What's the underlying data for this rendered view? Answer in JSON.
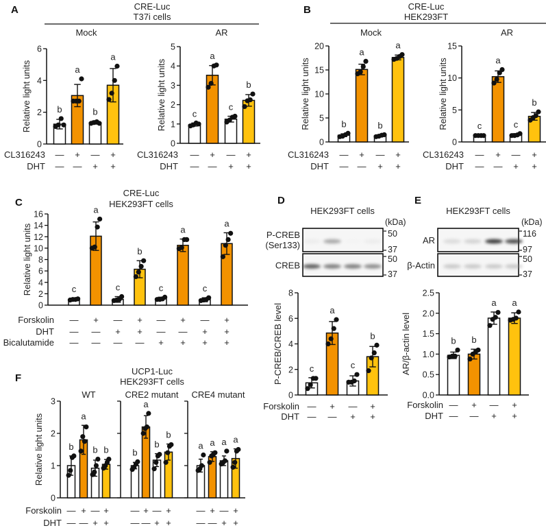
{
  "palette": {
    "white": "#ffffff",
    "orange": "#F39200",
    "yellow": "#FFC20E",
    "stroke": "#111111"
  },
  "panels": {
    "A": {
      "label": "A",
      "title1": "CRE-Luc",
      "title2": "T37i cells"
    },
    "B": {
      "label": "B",
      "title1": "CRE-Luc",
      "title2": "HEK293FT"
    },
    "C": {
      "label": "C",
      "title1": "CRE-Luc",
      "title2": "HEK293FT cells"
    },
    "D": {
      "label": "D",
      "title": "HEK293FT cells",
      "unit": "(kDa)",
      "blots": [
        {
          "name": "P-CREB",
          "name2": "(Ser133)",
          "markers": [
            "50",
            "37"
          ],
          "intensity": [
            0.2,
            0.6,
            0.05,
            0.2
          ]
        },
        {
          "name": "CREB",
          "markers": [
            "50",
            "37"
          ],
          "intensity": [
            0.85,
            0.75,
            0.75,
            0.7
          ]
        }
      ]
    },
    "E": {
      "label": "E",
      "title": "HEK293FT cells",
      "unit": "(kDa)",
      "blots": [
        {
          "name": "AR",
          "markers": [
            "116",
            "97"
          ],
          "intensity": [
            0.35,
            0.4,
            0.95,
            0.9
          ]
        },
        {
          "name": "β-Actin",
          "markers": [
            "50",
            "37"
          ],
          "intensity": [
            0.45,
            0.45,
            0.45,
            0.45
          ]
        }
      ]
    },
    "F": {
      "label": "F",
      "title1": "UCP1-Luc",
      "title2": "HEK293FT cells"
    }
  },
  "chart_data": [
    {
      "id": "A-mock",
      "type": "bar",
      "subtitle": "Mock",
      "ylabel": "Relative light units",
      "ylim": [
        0,
        6
      ],
      "yticks": [
        "0",
        "2",
        "4",
        "6"
      ],
      "colors": [
        "white",
        "orange",
        "white",
        "yellow"
      ],
      "values": [
        1.25,
        3.05,
        1.35,
        3.7
      ],
      "sd": [
        0.3,
        0.7,
        0.1,
        1.05
      ],
      "points": [
        [
          1.1,
          1.2,
          1.6,
          1.2
        ],
        [
          2.7,
          2.7,
          2.7,
          4.1
        ],
        [
          1.3,
          1.35,
          1.4,
          1.3
        ],
        [
          2.8,
          3.2,
          4.0,
          4.9
        ]
      ],
      "letters": [
        "b",
        "a",
        "b",
        "a"
      ],
      "treatments": [
        {
          "name": "CL316243",
          "values": [
            "—",
            "+",
            "—",
            "+"
          ]
        },
        {
          "name": "DHT",
          "values": [
            "—",
            "—",
            "+",
            "+"
          ]
        }
      ]
    },
    {
      "id": "A-ar",
      "type": "bar",
      "subtitle": "AR",
      "ylabel": "Relative light units",
      "ylim": [
        0,
        5
      ],
      "yticks": [
        "0",
        "1",
        "2",
        "3",
        "4",
        "5"
      ],
      "colors": [
        "white",
        "orange",
        "white",
        "yellow"
      ],
      "values": [
        0.97,
        3.52,
        1.25,
        2.22
      ],
      "sd": [
        0.08,
        0.5,
        0.15,
        0.3
      ],
      "points": [
        [
          0.9,
          0.95,
          1.05,
          1.0
        ],
        [
          2.9,
          3.1,
          4.0,
          4.05
        ],
        [
          1.1,
          1.2,
          1.35,
          1.4
        ],
        [
          1.9,
          2.2,
          2.25,
          2.55
        ]
      ],
      "letters": [
        "c",
        "a",
        "c",
        "b"
      ],
      "treatments": [
        {
          "name": "CL316243",
          "values": [
            "—",
            "+",
            "—",
            "+"
          ]
        },
        {
          "name": "DHT",
          "values": [
            "—",
            "—",
            "+",
            "+"
          ]
        }
      ]
    },
    {
      "id": "B-mock",
      "type": "bar",
      "subtitle": "Mock",
      "ylabel": "Relative light units",
      "ylim": [
        0,
        20
      ],
      "yticks": [
        "0",
        "5",
        "10",
        "15",
        "20"
      ],
      "colors": [
        "white",
        "orange",
        "white",
        "yellow"
      ],
      "values": [
        1.4,
        15.1,
        1.3,
        17.6
      ],
      "sd": [
        0.3,
        1.1,
        0.2,
        0.5
      ],
      "points": [
        [
          1.1,
          1.2,
          1.5,
          1.8
        ],
        [
          14.2,
          14.6,
          15.7,
          16.8
        ],
        [
          1.1,
          1.2,
          1.4,
          1.5
        ],
        [
          17.2,
          17.4,
          17.8,
          18.2
        ]
      ],
      "letters": [
        "b",
        "a",
        "b",
        "a"
      ],
      "treatments": [
        {
          "name": "CL316243",
          "values": [
            "—",
            "+",
            "—",
            "+"
          ]
        },
        {
          "name": "DHT",
          "values": [
            "—",
            "—",
            "+",
            "+"
          ]
        }
      ]
    },
    {
      "id": "B-ar",
      "type": "bar",
      "subtitle": "AR",
      "ylabel": "Relative light units",
      "ylim": [
        0,
        15
      ],
      "yticks": [
        "0",
        "5",
        "10",
        "15"
      ],
      "colors": [
        "white",
        "orange",
        "white",
        "yellow"
      ],
      "values": [
        1.0,
        10.2,
        1.1,
        4.0
      ],
      "sd": [
        0.05,
        0.9,
        0.2,
        0.6
      ],
      "points": [
        [
          1.0,
          1.0,
          1.0,
          1.0
        ],
        [
          9.2,
          9.8,
          10.8,
          11.3
        ],
        [
          1.0,
          1.0,
          1.1,
          1.3
        ],
        [
          3.4,
          3.8,
          4.1,
          4.7
        ]
      ],
      "letters": [
        "c",
        "a",
        "c",
        "b"
      ],
      "treatments": [
        {
          "name": "CL316243",
          "values": [
            "—",
            "+",
            "—",
            "+"
          ]
        },
        {
          "name": "DHT",
          "values": [
            "—",
            "—",
            "+",
            "+"
          ]
        }
      ]
    },
    {
      "id": "C",
      "type": "bar",
      "subtitle": "",
      "ylabel": "Relative light units",
      "ylim": [
        0,
        16
      ],
      "yticks": [
        "0",
        "2",
        "4",
        "6",
        "8",
        "10",
        "12",
        "14",
        "16"
      ],
      "colors": [
        "white",
        "orange",
        "white",
        "yellow",
        "white",
        "orange",
        "white",
        "orange"
      ],
      "values": [
        1.0,
        12.1,
        1.0,
        6.3,
        1.1,
        10.5,
        0.95,
        10.8
      ],
      "sd": [
        0.2,
        2.5,
        0.5,
        1.5,
        0.3,
        1.1,
        0.35,
        1.9
      ],
      "points": [
        [
          0.9,
          1.0,
          1.0,
          1.1
        ],
        [
          10.0,
          10.2,
          13.7,
          15.1
        ],
        [
          0.8,
          0.9,
          1.0,
          1.5
        ],
        [
          5.0,
          5.8,
          6.8,
          7.8
        ],
        [
          1.0,
          1.0,
          1.1,
          1.4
        ],
        [
          9.9,
          10.1,
          11.5,
          11.5
        ],
        [
          0.8,
          0.9,
          1.0,
          1.3
        ],
        [
          8.5,
          10.5,
          11.5,
          12.6
        ]
      ],
      "letters": [
        "c",
        "a",
        "c",
        "b",
        "c",
        "a",
        "c",
        "a"
      ],
      "treatments": [
        {
          "name": "Forskolin",
          "values": [
            "—",
            "+",
            "—",
            "+",
            "—",
            "+",
            "—",
            "+"
          ]
        },
        {
          "name": "DHT",
          "values": [
            "—",
            "—",
            "+",
            "+",
            "—",
            "—",
            "+",
            "+"
          ]
        },
        {
          "name": "Bicalutamide",
          "values": [
            "—",
            "—",
            "—",
            "—",
            "+",
            "+",
            "+",
            "+"
          ]
        }
      ]
    },
    {
      "id": "D",
      "type": "bar",
      "subtitle": "",
      "ylabel": "P-CREB/CREB level",
      "ylim": [
        0,
        8
      ],
      "yticks": [
        "0",
        "2",
        "4",
        "6",
        "8"
      ],
      "colors": [
        "white",
        "orange",
        "white",
        "yellow"
      ],
      "values": [
        0.95,
        4.85,
        1.1,
        3.0
      ],
      "sd": [
        0.4,
        0.9,
        0.4,
        0.8
      ],
      "points": [
        [
          0.5,
          0.8,
          1.3,
          1.3
        ],
        [
          4.0,
          4.4,
          5.2,
          5.9
        ],
        [
          1.0,
          1.0,
          1.1,
          1.6
        ],
        [
          1.9,
          2.9,
          3.3,
          3.9
        ]
      ],
      "letters": [
        "c",
        "a",
        "c",
        "b"
      ],
      "treatments": [
        {
          "name": "Forskolin",
          "values": [
            "—",
            "+",
            "—",
            "+"
          ]
        },
        {
          "name": "DHT",
          "values": [
            "—",
            "—",
            "+",
            "+"
          ]
        }
      ]
    },
    {
      "id": "E",
      "type": "bar",
      "subtitle": "",
      "ylabel": "AR/β-actin level",
      "ylim": [
        0,
        2.5
      ],
      "yticks": [
        "0.0",
        "0.5",
        "1.0",
        "1.5",
        "2.0",
        "2.5"
      ],
      "colors": [
        "white",
        "orange",
        "white",
        "yellow"
      ],
      "values": [
        0.97,
        1.0,
        1.88,
        1.88
      ],
      "sd": [
        0.08,
        0.12,
        0.15,
        0.13
      ],
      "points": [
        [
          0.93,
          0.95,
          0.95,
          1.1
        ],
        [
          0.88,
          1.0,
          1.05,
          1.1
        ],
        [
          1.7,
          1.85,
          1.9,
          2.02
        ],
        [
          1.83,
          1.85,
          1.88,
          2.03
        ]
      ],
      "letters": [
        "b",
        "b",
        "a",
        "a"
      ],
      "treatments": [
        {
          "name": "Forskolin",
          "values": [
            "—",
            "+",
            "—",
            "+"
          ]
        },
        {
          "name": "DHT",
          "values": [
            "—",
            "—",
            "+",
            "+"
          ]
        }
      ]
    },
    {
      "id": "F-wt",
      "type": "bar",
      "subtitle": "WT",
      "ylabel": "Relative light units",
      "ylim": [
        0,
        3
      ],
      "yticks": [
        "0",
        "1",
        "2",
        "3"
      ],
      "colors": [
        "white",
        "orange",
        "white",
        "yellow"
      ],
      "values": [
        1.0,
        1.8,
        0.92,
        1.04
      ],
      "sd": [
        0.3,
        0.45,
        0.25,
        0.15
      ],
      "points": [
        [
          0.7,
          0.85,
          1.25,
          1.3
        ],
        [
          1.45,
          1.9,
          1.75,
          2.2
        ],
        [
          0.72,
          0.8,
          1.0,
          1.2
        ],
        [
          0.92,
          1.0,
          1.1,
          1.2
        ]
      ],
      "letters": [
        "b",
        "a",
        "b",
        "b"
      ],
      "treatments": [
        {
          "name": "Forskolin",
          "values": [
            "—",
            "+",
            "—",
            "+"
          ]
        },
        {
          "name": "DHT",
          "values": [
            "—",
            "—",
            "+",
            "+"
          ]
        }
      ]
    },
    {
      "id": "F-cre2",
      "type": "bar",
      "subtitle": "CRE2 mutant",
      "ylim": [
        0,
        3
      ],
      "colors": [
        "white",
        "orange",
        "white",
        "yellow"
      ],
      "values": [
        1.0,
        2.2,
        1.17,
        1.42
      ],
      "sd": [
        0.1,
        0.35,
        0.2,
        0.25
      ],
      "points": [
        [
          0.88,
          0.95,
          1.05,
          1.12
        ],
        [
          2.0,
          2.15,
          2.2,
          2.62
        ],
        [
          0.9,
          1.1,
          1.3,
          1.35
        ],
        [
          1.1,
          1.4,
          1.6,
          1.65
        ]
      ],
      "letters": [
        "b",
        "a",
        "b",
        "b"
      ],
      "treatments": [
        {
          "values": [
            "—",
            "+",
            "—",
            "+"
          ]
        },
        {
          "values": [
            "—",
            "—",
            "+",
            "+"
          ]
        }
      ]
    },
    {
      "id": "F-cre4",
      "type": "bar",
      "subtitle": "CRE4 mutant",
      "ylim": [
        0,
        3
      ],
      "colors": [
        "white",
        "orange",
        "white",
        "yellow"
      ],
      "values": [
        1.0,
        1.28,
        1.15,
        1.22
      ],
      "sd": [
        0.2,
        0.15,
        0.15,
        0.3
      ],
      "points": [
        [
          0.85,
          0.9,
          1.0,
          1.33
        ],
        [
          1.1,
          1.3,
          1.35,
          1.4
        ],
        [
          1.05,
          1.1,
          1.15,
          1.45
        ],
        [
          0.95,
          1.1,
          1.45,
          1.5
        ]
      ],
      "letters": [
        "a",
        "a",
        "a",
        "a"
      ],
      "treatments": [
        {
          "values": [
            "—",
            "+",
            "—",
            "+"
          ]
        },
        {
          "values": [
            "—",
            "—",
            "+",
            "+"
          ]
        }
      ]
    }
  ]
}
